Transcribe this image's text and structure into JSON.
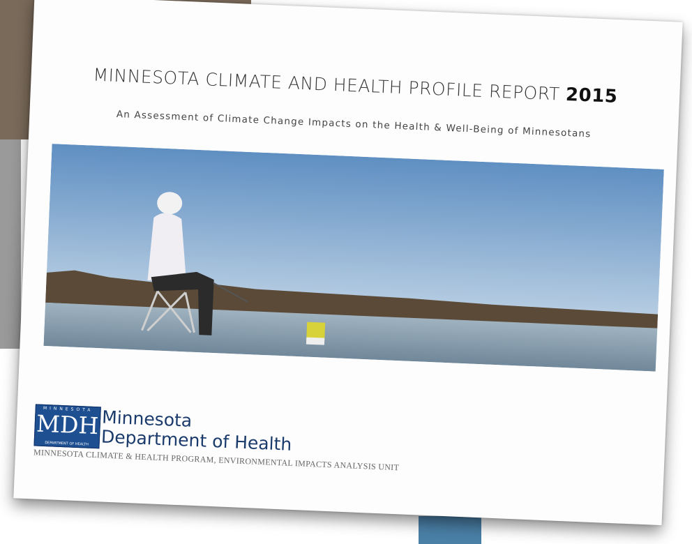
{
  "header": {
    "title": "MINNESOTA CLIMATE AND HEALTH PROFILE REPORT",
    "year": "2015",
    "subtitle": "An Assessment of Climate Change Impacts on the Health & Well-Being of Minnesotans"
  },
  "logo": {
    "top": "MINNESOTA",
    "mark": "MDH",
    "bottom": "DEPARTMENT OF HEALTH",
    "name_line1": "Minnesota",
    "name_line2": "Department of Health"
  },
  "footer": {
    "program": "MINNESOTA CLIMATE & HEALTH PROGRAM, ENVIRONMENTAL IMPACTS ANALYSIS UNIT"
  }
}
